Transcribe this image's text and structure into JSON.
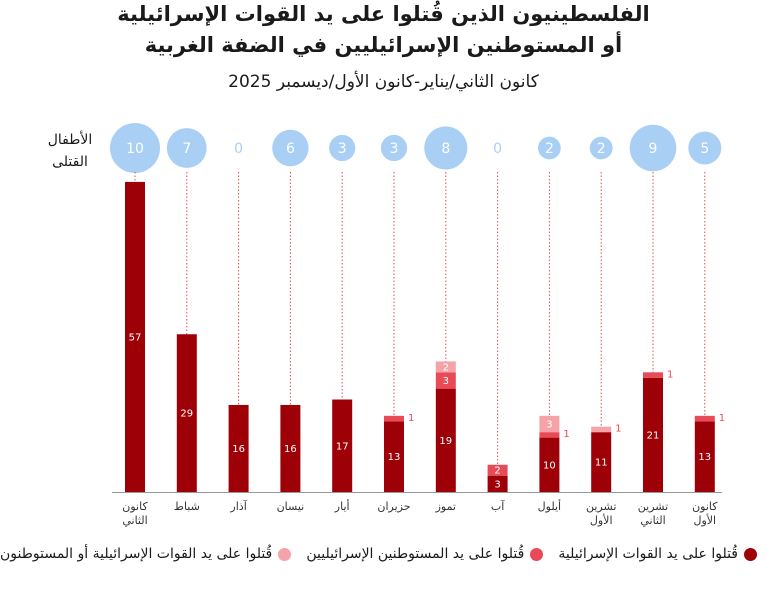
{
  "chart_data": {
    "type": "bar",
    "title_line1": "الفلسطينيون الذين قُتلوا على يد القوات الإسرائيلية",
    "title_line2": "أو المستوطنين الإسرائيليين في الضفة الغربية",
    "subtitle": "كانون الثاني/يناير-كانون الأول/ديسمبر 2025",
    "children_label": "الأطفال",
    "killed_label": "القتلى",
    "months": [
      {
        "line1": "كانون",
        "line2": "الثاني",
        "forces": 57,
        "settlers": 0,
        "either": 0,
        "children": 10
      },
      {
        "line1": "شباط",
        "line2": "",
        "forces": 29,
        "settlers": 0,
        "either": 0,
        "children": 7
      },
      {
        "line1": "آذار",
        "line2": "",
        "forces": 16,
        "settlers": 0,
        "either": 0,
        "children": 0
      },
      {
        "line1": "نيسان",
        "line2": "",
        "forces": 16,
        "settlers": 0,
        "either": 0,
        "children": 6
      },
      {
        "line1": "أيار",
        "line2": "",
        "forces": 17,
        "settlers": 0,
        "either": 0,
        "children": 3
      },
      {
        "line1": "حزيران",
        "line2": "",
        "forces": 13,
        "settlers": 1,
        "either": 0,
        "children": 3
      },
      {
        "line1": "تموز",
        "line2": "",
        "forces": 19,
        "settlers": 3,
        "either": 2,
        "children": 8
      },
      {
        "line1": "آب",
        "line2": "",
        "forces": 3,
        "settlers": 2,
        "either": 0,
        "children": 0
      },
      {
        "line1": "أيلول",
        "line2": "",
        "forces": 10,
        "settlers": 1,
        "either": 3,
        "children": 2
      },
      {
        "line1": "تشرين",
        "line2": "الأول",
        "forces": 11,
        "settlers": 0,
        "either": 1,
        "children": 2
      },
      {
        "line1": "تشرين",
        "line2": "الثاني",
        "forces": 21,
        "settlers": 1,
        "either": 0,
        "children": 9
      },
      {
        "line1": "كانون",
        "line2": "الأول",
        "forces": 13,
        "settlers": 1,
        "either": 0,
        "children": 5
      }
    ],
    "legend": [
      {
        "label": "قُتلوا على يد القوات الإسرائيلية",
        "color": "#9e0008"
      },
      {
        "label": "قُتلوا على يد المستوطنين الإسرائيليين",
        "color": "#e84a57"
      },
      {
        "label": "قُتلوا على يد القوات الإسرائيلية أو المستوطنون",
        "color": "#f4a3a8"
      }
    ],
    "colors": {
      "bubble": "#a9cff5",
      "bubble_text": "#ffffff",
      "zero_text": "#a9cff5",
      "dotted": "#e84a57",
      "axis": "#999999"
    }
  }
}
